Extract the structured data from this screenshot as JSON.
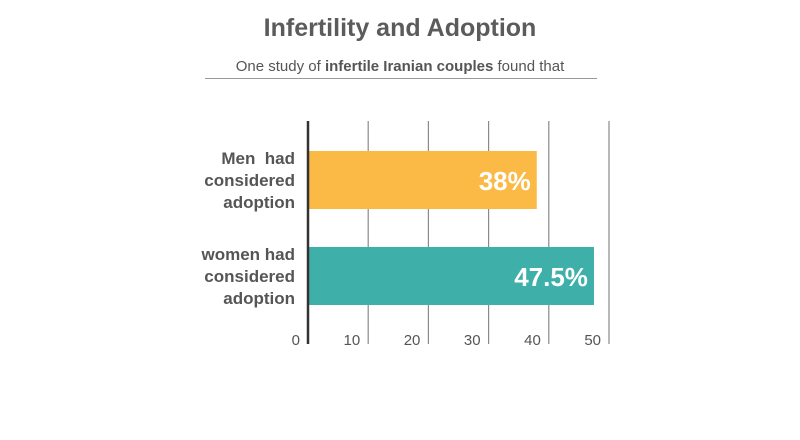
{
  "title": "Infertility and Adoption",
  "subtitle": {
    "prefix": "One study of ",
    "emphasis": "infertile Iranian couples",
    "suffix": " found that"
  },
  "chart_data": {
    "type": "bar",
    "orientation": "horizontal",
    "categories": [
      [
        "Men  had",
        "considered",
        "adoption"
      ],
      [
        "women had",
        "considered",
        "adoption"
      ]
    ],
    "values": [
      38,
      47.5
    ],
    "value_labels": [
      "38%",
      "47.5%"
    ],
    "colors": [
      "#FBB945",
      "#3EAFA9"
    ],
    "xlim": [
      0,
      50
    ],
    "xticks": [
      0,
      10,
      20,
      30,
      40,
      50
    ],
    "xtick_labels": [
      "0",
      "10",
      "20",
      "30",
      "40",
      "50"
    ],
    "grid": true,
    "legend": "none"
  }
}
